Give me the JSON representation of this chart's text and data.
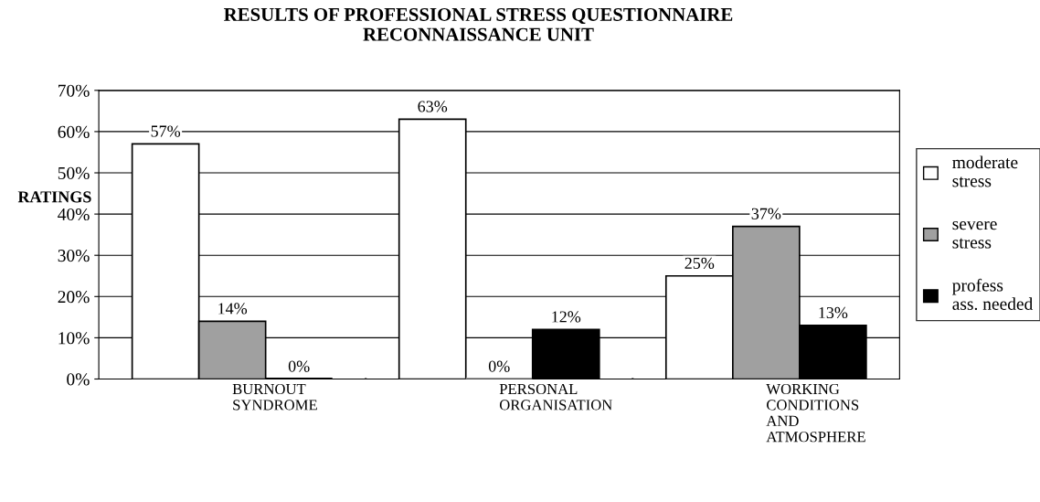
{
  "chart_data": {
    "type": "bar",
    "title": "RESULTS OF PROFESSIONAL STRESS QUESTIONNAIRE\nRECONNAISSANCE UNIT",
    "ylabel": "RATINGS",
    "categories": [
      "BURNOUT\nSYNDROME",
      "PERSONAL\nORGANISATION",
      "WORKING\nCONDITIONS\nAND\nATMOSPHERE"
    ],
    "series": [
      {
        "name": "moderate stress",
        "color": "#ffffff",
        "values": [
          57,
          63,
          25
        ],
        "value_labels": [
          "57%",
          "63%",
          "25%"
        ]
      },
      {
        "name": "severe stress",
        "color": "#a0a0a0",
        "values": [
          14,
          0,
          37
        ],
        "value_labels": [
          "14%",
          "0%",
          "37%"
        ]
      },
      {
        "name": "profess ass. needed",
        "color": "#000000",
        "values": [
          0,
          12,
          13
        ],
        "value_labels": [
          "0%",
          "12%",
          "13%"
        ]
      }
    ],
    "ylim": [
      0,
      70
    ],
    "yticks": [
      {
        "value": 0,
        "label": "0%"
      },
      {
        "value": 10,
        "label": "10%"
      },
      {
        "value": 20,
        "label": "20%"
      },
      {
        "value": 30,
        "label": "30%"
      },
      {
        "value": 40,
        "label": "40%"
      },
      {
        "value": 50,
        "label": "50%"
      },
      {
        "value": 60,
        "label": "60%"
      },
      {
        "value": 70,
        "label": "70%"
      }
    ],
    "grid": "y",
    "legend": "right"
  }
}
